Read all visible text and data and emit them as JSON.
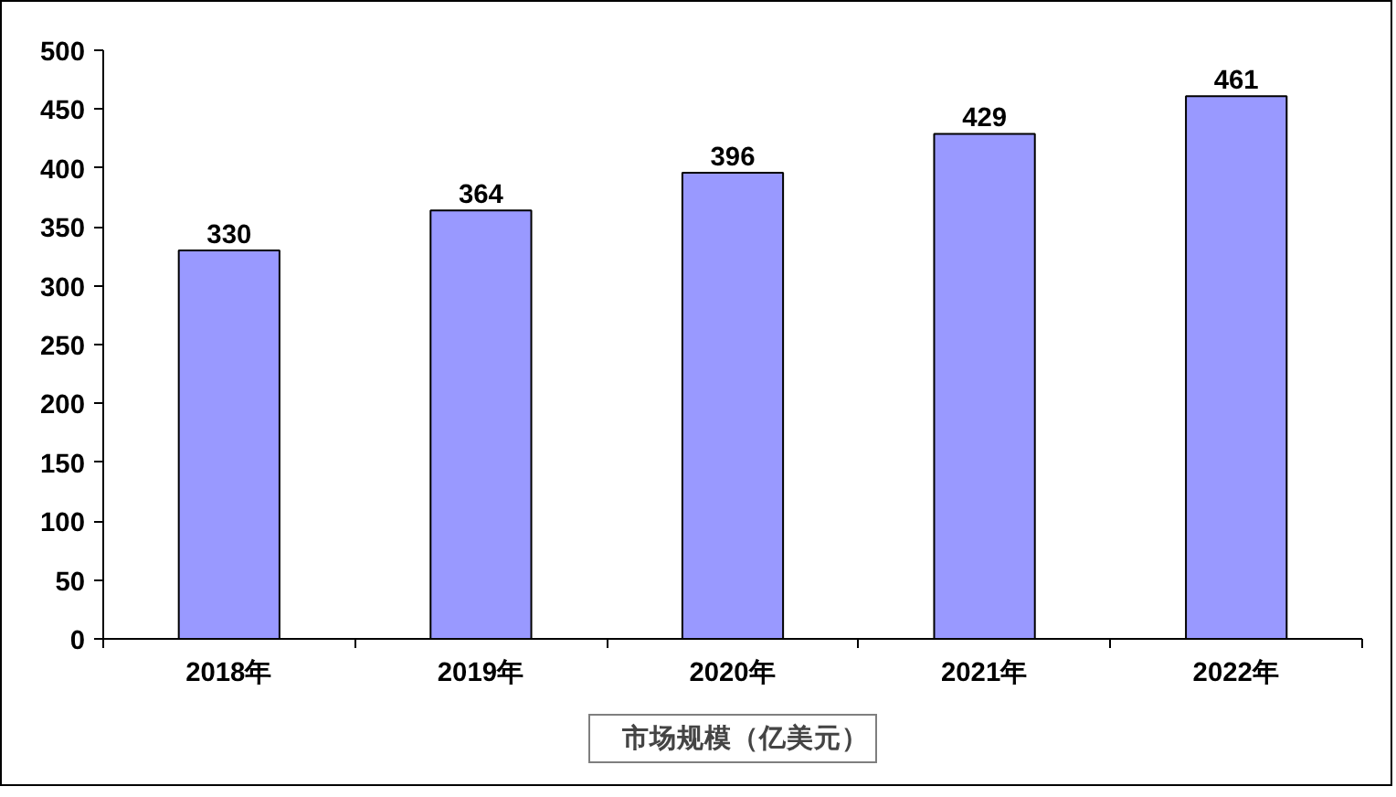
{
  "chart_data": {
    "type": "bar",
    "categories": [
      "2018年",
      "2019年",
      "2020年",
      "2021年",
      "2022年"
    ],
    "series": [
      {
        "name": "市场规模（亿美元）",
        "color": "#9999ff",
        "values": [
          330,
          364,
          396,
          429,
          461
        ]
      }
    ],
    "ylim": [
      0,
      500
    ],
    "yticks": [
      0,
      50,
      100,
      150,
      200,
      250,
      300,
      350,
      400,
      450,
      500
    ],
    "data_labels": true,
    "grid": false,
    "legend": "bottom"
  }
}
